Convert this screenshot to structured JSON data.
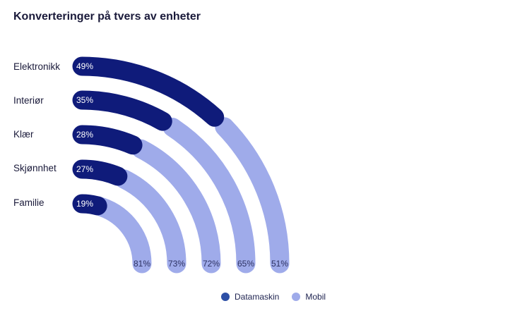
{
  "chart_data": {
    "type": "radial-bar",
    "title": "Konverteringer på tvers av enheter",
    "categories": [
      "Elektronikk",
      "Interiør",
      "Klær",
      "Skjønnhet",
      "Familie"
    ],
    "series": [
      {
        "name": "Datamaskin",
        "values": [
          49,
          35,
          28,
          27,
          19
        ],
        "labels": [
          "49%",
          "35%",
          "28%",
          "27%",
          "19%"
        ],
        "color": "#0f1b7a"
      },
      {
        "name": "Mobil",
        "values": [
          51,
          65,
          72,
          73,
          81
        ],
        "labels": [
          "51%",
          "65%",
          "72%",
          "73%",
          "81%"
        ],
        "color": "#9fabea"
      }
    ],
    "legend_position": "bottom"
  }
}
